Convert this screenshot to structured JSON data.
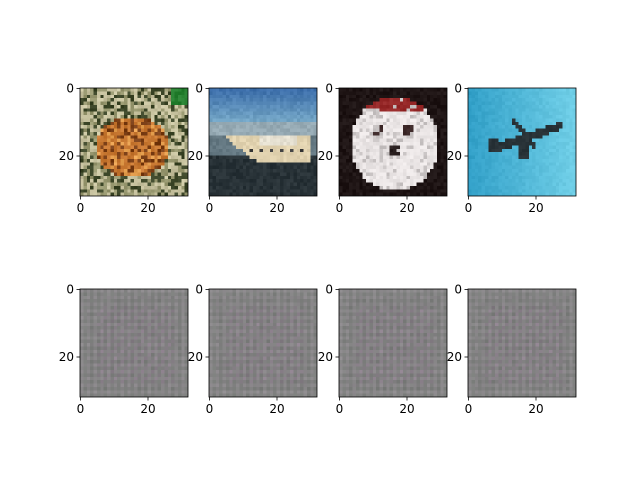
{
  "chart_data": [
    {
      "type": "heatmap",
      "content": "frog",
      "xticks": [
        "0",
        "20"
      ],
      "yticks": [
        "0",
        "20"
      ],
      "xlim": [
        0,
        32
      ],
      "ylim": [
        32,
        0
      ]
    },
    {
      "type": "heatmap",
      "content": "ship",
      "xticks": [
        "0",
        "20"
      ],
      "yticks": [
        "0",
        "20"
      ],
      "xlim": [
        0,
        32
      ],
      "ylim": [
        32,
        0
      ]
    },
    {
      "type": "heatmap",
      "content": "dog",
      "xticks": [
        "0",
        "20"
      ],
      "yticks": [
        "0",
        "20"
      ],
      "xlim": [
        0,
        32
      ],
      "ylim": [
        32,
        0
      ]
    },
    {
      "type": "heatmap",
      "content": "airplane",
      "xticks": [
        "0",
        "20"
      ],
      "yticks": [
        "0",
        "20"
      ],
      "xlim": [
        0,
        32
      ],
      "ylim": [
        32,
        0
      ]
    },
    {
      "type": "heatmap",
      "content": "noise",
      "xticks": [
        "0",
        "20"
      ],
      "yticks": [
        "0",
        "20"
      ],
      "xlim": [
        0,
        32
      ],
      "ylim": [
        32,
        0
      ]
    },
    {
      "type": "heatmap",
      "content": "noise",
      "xticks": [
        "0",
        "20"
      ],
      "yticks": [
        "0",
        "20"
      ],
      "xlim": [
        0,
        32
      ],
      "ylim": [
        32,
        0
      ]
    },
    {
      "type": "heatmap",
      "content": "noise",
      "xticks": [
        "0",
        "20"
      ],
      "yticks": [
        "0",
        "20"
      ],
      "xlim": [
        0,
        32
      ],
      "ylim": [
        32,
        0
      ]
    },
    {
      "type": "heatmap",
      "content": "noise",
      "xticks": [
        "0",
        "20"
      ],
      "yticks": [
        "0",
        "20"
      ],
      "xlim": [
        0,
        32
      ],
      "ylim": [
        32,
        0
      ]
    }
  ]
}
